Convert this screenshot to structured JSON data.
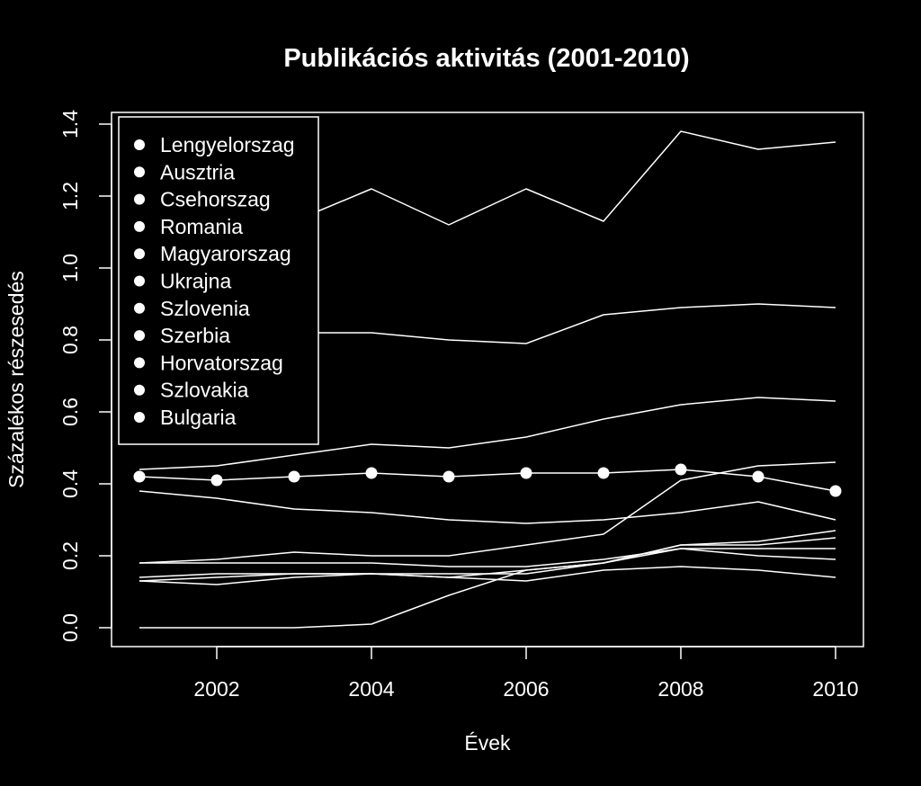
{
  "chart_data": {
    "type": "line",
    "title": "Publikációs aktivitás (2001-2010)",
    "xlabel": "Évek",
    "ylabel": "Százalékos részesedés",
    "x": [
      2001,
      2002,
      2003,
      2004,
      2005,
      2006,
      2007,
      2008,
      2009,
      2010
    ],
    "xlim": [
      2001,
      2010
    ],
    "ylim": [
      0.0,
      1.4
    ],
    "xticks": [
      2002,
      2004,
      2006,
      2008,
      2010
    ],
    "xtick_labels": [
      "2002",
      "2004",
      "2006",
      "2008",
      "2010"
    ],
    "yticks": [
      0.0,
      0.2,
      0.4,
      0.6,
      0.8,
      1.0,
      1.2,
      1.4
    ],
    "ytick_labels": [
      "0.0",
      "0.2",
      "0.4",
      "0.6",
      "0.8",
      "1.0",
      "1.2",
      "1.4"
    ],
    "grid": false,
    "legend_position": "top-left",
    "legend_entries": [
      "Lengyelorszag",
      "Ausztria",
      "Csehorszag",
      "Romania",
      "Magyarorszag",
      "Ukrajna",
      "Szlovenia",
      "Szerbia",
      "Horvatorszag",
      "Szlovakia",
      "Bulgaria"
    ],
    "series": [
      {
        "values": [
          0.98,
          1.05,
          1.13,
          1.22,
          1.12,
          1.22,
          1.13,
          1.38,
          1.33,
          1.35
        ]
      },
      {
        "values": [
          0.8,
          0.79,
          0.82,
          0.82,
          0.8,
          0.79,
          0.87,
          0.89,
          0.9,
          0.89
        ]
      },
      {
        "values": [
          0.44,
          0.45,
          0.48,
          0.51,
          0.5,
          0.53,
          0.58,
          0.62,
          0.64,
          0.63
        ]
      },
      {
        "values": [
          0.18,
          0.19,
          0.21,
          0.2,
          0.2,
          0.23,
          0.26,
          0.41,
          0.45,
          0.46
        ]
      },
      {
        "values": [
          0.42,
          0.41,
          0.42,
          0.43,
          0.42,
          0.43,
          0.43,
          0.44,
          0.42,
          0.38
        ],
        "markers": true
      },
      {
        "values": [
          0.38,
          0.36,
          0.33,
          0.32,
          0.3,
          0.29,
          0.3,
          0.32,
          0.35,
          0.3
        ]
      },
      {
        "values": [
          0.13,
          0.12,
          0.14,
          0.15,
          0.14,
          0.16,
          0.18,
          0.23,
          0.24,
          0.27
        ]
      },
      {
        "values": [
          0.14,
          0.15,
          0.15,
          0.15,
          0.15,
          0.15,
          0.18,
          0.22,
          0.22,
          0.22
        ]
      },
      {
        "values": [
          0.18,
          0.18,
          0.18,
          0.18,
          0.17,
          0.17,
          0.19,
          0.22,
          0.2,
          0.19
        ]
      },
      {
        "values": [
          0.13,
          0.14,
          0.15,
          0.15,
          0.14,
          0.13,
          0.16,
          0.17,
          0.16,
          0.14
        ]
      },
      {
        "values": [
          0.0,
          0.0,
          0.0,
          0.01,
          0.09,
          0.16,
          0.18,
          0.23,
          0.23,
          0.25
        ]
      }
    ],
    "colors": {
      "background": "#000000",
      "foreground": "#ffffff"
    }
  }
}
